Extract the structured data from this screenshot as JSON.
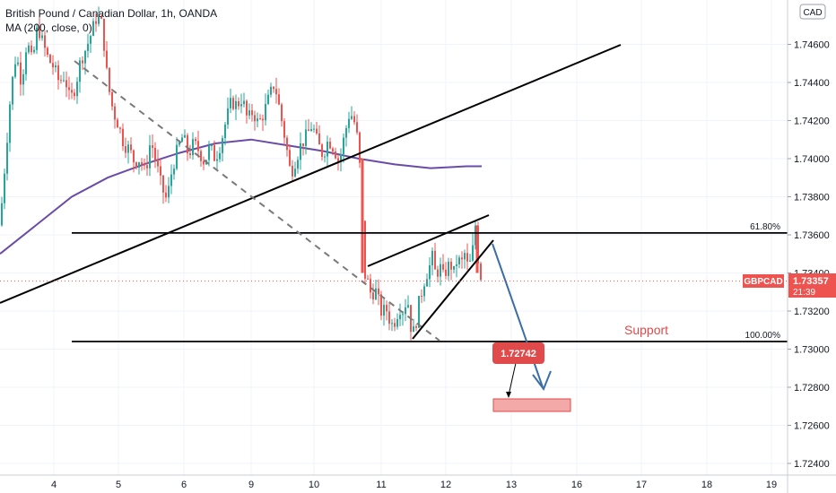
{
  "header": {
    "title": "British Pound / Canadian Dollar, 1h, OANDA",
    "indicator": "MA (200, close, 0)",
    "currency_badge": "CAD"
  },
  "colors": {
    "up": "#26a69a",
    "down": "#ef5350",
    "ma": "#6a4ca8",
    "trendline": "#000000",
    "arrow": "#3b6ea5",
    "annotation_red": "#e04a4a",
    "target_box": "#f4a9a9"
  },
  "price_label": {
    "symbol": "GBPCAD",
    "price": "1.73357",
    "countdown": "21:39"
  },
  "target_label": "1.72742",
  "support_label": "Support",
  "chart_data": {
    "type": "candlestick",
    "symbol": "GBPCAD",
    "timeframe": "1h",
    "ylim": [
      1.7232,
      1.7481
    ],
    "yticks": [
      "1.74600",
      "1.74400",
      "1.74200",
      "1.74000",
      "1.73800",
      "1.73600",
      "1.73400",
      "1.73200",
      "1.73000",
      "1.72800",
      "1.72600",
      "1.72400"
    ],
    "xticks": [
      "4",
      "5",
      "6",
      "9",
      "10",
      "11",
      "12",
      "13",
      "16",
      "17",
      "18",
      "19"
    ],
    "fib_levels": [
      {
        "label": "61.80%",
        "price": 1.7361
      },
      {
        "label": "100.00%",
        "price": 1.7304
      }
    ],
    "current_price": 1.73357,
    "target_price": 1.72742,
    "ma_period": 200,
    "close_path": [
      [
        0,
        1.7365
      ],
      [
        6,
        1.74
      ],
      [
        12,
        1.7435
      ],
      [
        18,
        1.7455
      ],
      [
        24,
        1.744
      ],
      [
        30,
        1.7462
      ],
      [
        36,
        1.745
      ],
      [
        42,
        1.747
      ],
      [
        48,
        1.746
      ],
      [
        54,
        1.7452
      ],
      [
        60,
        1.7448
      ],
      [
        66,
        1.744
      ],
      [
        72,
        1.7444
      ],
      [
        78,
        1.743
      ],
      [
        84,
        1.7438
      ],
      [
        90,
        1.7452
      ],
      [
        96,
        1.7458
      ],
      [
        102,
        1.7466
      ],
      [
        108,
        1.7475
      ],
      [
        114,
        1.747
      ],
      [
        120,
        1.744
      ],
      [
        126,
        1.7425
      ],
      [
        132,
        1.7418
      ],
      [
        138,
        1.7408
      ],
      [
        144,
        1.7405
      ],
      [
        150,
        1.7398
      ],
      [
        156,
        1.74
      ],
      [
        162,
        1.7392
      ],
      [
        168,
        1.741
      ],
      [
        174,
        1.7398
      ],
      [
        180,
        1.7385
      ],
      [
        186,
        1.7378
      ],
      [
        192,
        1.7395
      ],
      [
        198,
        1.7405
      ],
      [
        204,
        1.7412
      ],
      [
        210,
        1.7402
      ],
      [
        216,
        1.7408
      ],
      [
        222,
        1.7404
      ],
      [
        228,
        1.7398
      ],
      [
        234,
        1.7406
      ],
      [
        240,
        1.74
      ],
      [
        246,
        1.7408
      ],
      [
        252,
        1.742
      ],
      [
        258,
        1.743
      ],
      [
        264,
        1.7428
      ],
      [
        270,
        1.7432
      ],
      [
        276,
        1.742
      ],
      [
        282,
        1.7425
      ],
      [
        288,
        1.7418
      ],
      [
        294,
        1.7424
      ],
      [
        300,
        1.7432
      ],
      [
        306,
        1.744
      ],
      [
        312,
        1.7425
      ],
      [
        318,
        1.741
      ],
      [
        324,
        1.7392
      ],
      [
        330,
        1.74
      ],
      [
        336,
        1.7408
      ],
      [
        342,
        1.7412
      ],
      [
        348,
        1.7418
      ],
      [
        354,
        1.7408
      ],
      [
        360,
        1.7402
      ],
      [
        366,
        1.741
      ],
      [
        372,
        1.7406
      ],
      [
        378,
        1.7398
      ],
      [
        384,
        1.7412
      ],
      [
        390,
        1.7425
      ],
      [
        396,
        1.7418
      ],
      [
        400,
        1.7405
      ],
      [
        403,
        1.7378
      ],
      [
        406,
        1.734
      ],
      [
        410,
        1.7335
      ],
      [
        414,
        1.7328
      ],
      [
        418,
        1.7332
      ],
      [
        422,
        1.7325
      ],
      [
        426,
        1.7318
      ],
      [
        430,
        1.7322
      ],
      [
        434,
        1.7316
      ],
      [
        438,
        1.7312
      ],
      [
        442,
        1.7318
      ],
      [
        446,
        1.7322
      ],
      [
        450,
        1.732
      ],
      [
        454,
        1.7328
      ],
      [
        458,
        1.7312
      ],
      [
        462,
        1.7308
      ],
      [
        466,
        1.7322
      ],
      [
        470,
        1.733
      ],
      [
        474,
        1.7338
      ],
      [
        478,
        1.7342
      ],
      [
        482,
        1.7348
      ],
      [
        486,
        1.7338
      ],
      [
        490,
        1.7344
      ],
      [
        494,
        1.7338
      ],
      [
        498,
        1.7342
      ],
      [
        502,
        1.7345
      ],
      [
        506,
        1.734
      ],
      [
        510,
        1.7348
      ],
      [
        514,
        1.7344
      ],
      [
        518,
        1.735
      ],
      [
        522,
        1.7342
      ],
      [
        526,
        1.7348
      ],
      [
        530,
        1.7365
      ],
      [
        534,
        1.7342
      ],
      [
        538,
        1.7335
      ]
    ],
    "ma_path": [
      [
        0,
        1.735
      ],
      [
        40,
        1.7365
      ],
      [
        80,
        1.738
      ],
      [
        120,
        1.739
      ],
      [
        160,
        1.7397
      ],
      [
        200,
        1.7403
      ],
      [
        240,
        1.7408
      ],
      [
        280,
        1.741
      ],
      [
        320,
        1.7407
      ],
      [
        360,
        1.7404
      ],
      [
        400,
        1.74
      ],
      [
        440,
        1.7397
      ],
      [
        480,
        1.7395
      ],
      [
        520,
        1.7396
      ],
      [
        537,
        1.7396
      ]
    ]
  }
}
